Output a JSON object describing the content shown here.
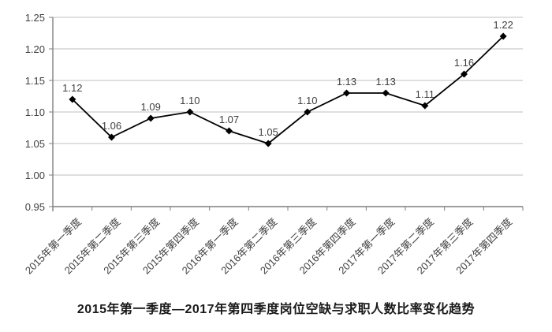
{
  "chart_data": {
    "type": "line",
    "title": "2015年第一季度—2017年第四季度岗位空缺与求职人数比率变化趋势",
    "categories": [
      "2015年第一季度",
      "2015年第二季度",
      "2015年第三季度",
      "2015年第四季度",
      "2016年第一季度",
      "2016年第二季度",
      "2016年第三季度",
      "2016年第四季度",
      "2017年第一季度",
      "2017年第二季度",
      "2017年第三季度",
      "2017年第四季度"
    ],
    "values": [
      1.12,
      1.06,
      1.09,
      1.1,
      1.07,
      1.05,
      1.1,
      1.13,
      1.13,
      1.11,
      1.16,
      1.22
    ],
    "value_labels": [
      "1.12",
      "1.06",
      "1.09",
      "1.10",
      "1.07",
      "1.05",
      "1.10",
      "1.13",
      "1.13",
      "1.11",
      "1.16",
      "1.22"
    ],
    "xlabel": "",
    "ylabel": "",
    "ylim": [
      0.95,
      1.25
    ],
    "ytick_step": 0.05,
    "yticks": [
      "1.25",
      "1.20",
      "1.15",
      "1.10",
      "1.05",
      "1.00",
      "0.95"
    ],
    "grid": "horizontal",
    "legend_position": "none",
    "marker": "diamond",
    "colors": {
      "line": "#000000",
      "marker": "#000000",
      "grid": "#bfbfbf",
      "axis": "#7f7f7f",
      "tick_label": "#404040",
      "data_label": "#404040",
      "title": "#1a1a1a"
    }
  }
}
